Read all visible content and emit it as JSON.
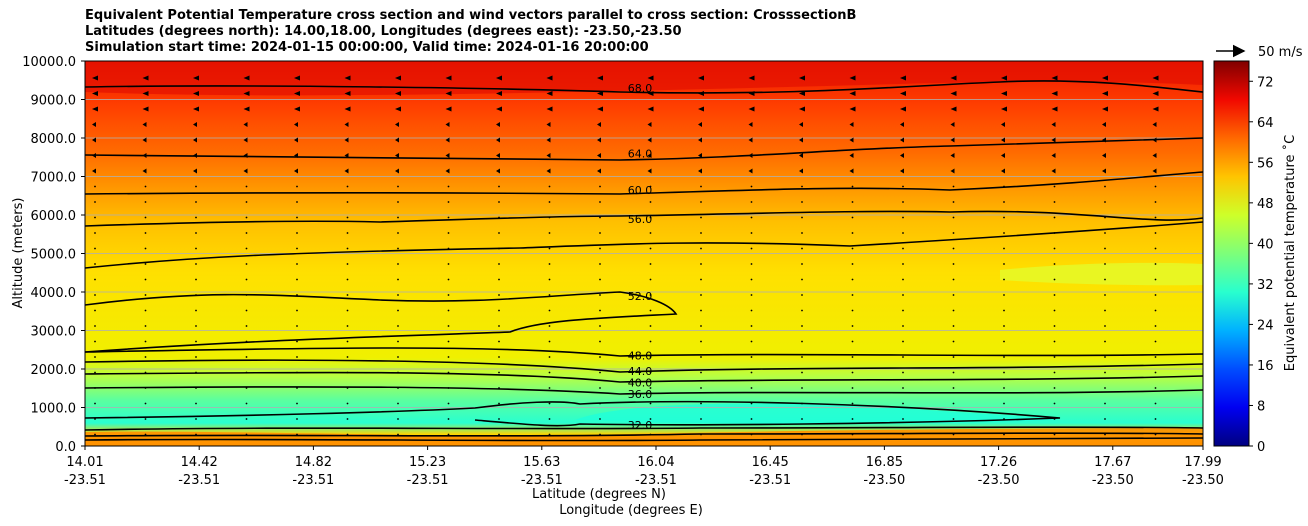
{
  "chart_data": {
    "type": "contour",
    "title_lines": [
      "Equivalent Potential Temperature cross section and wind vectors parallel to cross section: CrosssectionB",
      "Latitudes (degrees north): 14.00,18.00, Longitudes (degrees east): -23.50,-23.50",
      "Simulation start time: 2024-01-15 00:00:00, Valid time: 2024-01-16 20:00:00"
    ],
    "ylabel": "Altitude (meters)",
    "xlabel_lat": "Latitude (degrees N)",
    "xlabel_lon": "Longitude (degrees E)",
    "ylim": [
      0,
      10000
    ],
    "y_ticks": [
      "0.0",
      "1000.0",
      "2000.0",
      "3000.0",
      "4000.0",
      "5000.0",
      "6000.0",
      "7000.0",
      "8000.0",
      "9000.0",
      "10000.0"
    ],
    "x_ticks": [
      {
        "lat": "14.01",
        "lon": "-23.51"
      },
      {
        "lat": "14.42",
        "lon": "-23.51"
      },
      {
        "lat": "14.82",
        "lon": "-23.51"
      },
      {
        "lat": "15.23",
        "lon": "-23.51"
      },
      {
        "lat": "15.63",
        "lon": "-23.51"
      },
      {
        "lat": "16.04",
        "lon": "-23.51"
      },
      {
        "lat": "16.45",
        "lon": "-23.51"
      },
      {
        "lat": "16.85",
        "lon": "-23.50"
      },
      {
        "lat": "17.26",
        "lon": "-23.50"
      },
      {
        "lat": "17.67",
        "lon": "-23.50"
      },
      {
        "lat": "17.99",
        "lon": "-23.50"
      }
    ],
    "colorbar": {
      "label": "Equivalent potential temperature ˚C",
      "range": [
        0,
        76
      ],
      "ticks": [
        "0",
        "8",
        "16",
        "24",
        "32",
        "40",
        "48",
        "56",
        "64",
        "72"
      ],
      "colormap": "jet"
    },
    "wind_key": "50 m/s",
    "contour_levels": [
      {
        "label": "68.0",
        "altitude": 9300
      },
      {
        "label": "64.0",
        "altitude": 7600
      },
      {
        "label": "60.0",
        "altitude": 6650
      },
      {
        "label": "56.0",
        "altitude": 5900
      },
      {
        "label": "52.0",
        "altitude": 3900
      },
      {
        "label": "48.0",
        "altitude": 2350
      },
      {
        "label": "44.0",
        "altitude": 1950
      },
      {
        "label": "40.0",
        "altitude": 1650
      },
      {
        "label": "36.0",
        "altitude": 1350
      },
      {
        "label": "32.0",
        "altitude": 550
      }
    ],
    "colorbar_fill_colors": [
      "#000080",
      "#0000f1",
      "#004dff",
      "#00b1ff",
      "#29ffce",
      "#7dff7a",
      "#ceff29",
      "#ffc400",
      "#ff6800",
      "#f10800",
      "#800000"
    ]
  }
}
